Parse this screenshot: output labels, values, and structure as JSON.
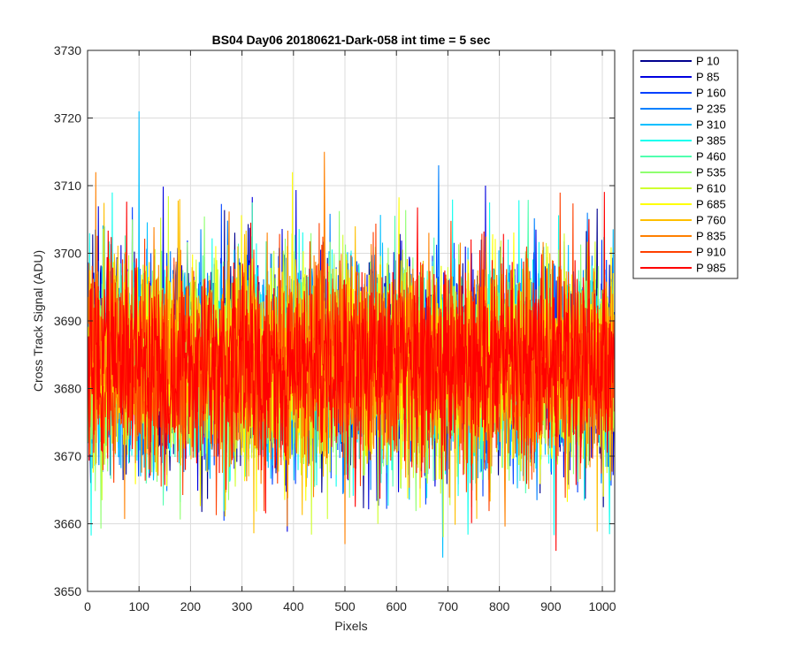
{
  "chart_data": {
    "type": "line",
    "title": "BS04 Day06 20180621-Dark-058 int time = 5 sec",
    "xlabel": "Pixels",
    "ylabel": "Cross Track Signal (ADU)",
    "xlim": [
      0,
      1024
    ],
    "ylim": [
      3650,
      3730
    ],
    "xticks": [
      0,
      100,
      200,
      300,
      400,
      500,
      600,
      700,
      800,
      900,
      1000
    ],
    "yticks": [
      3650,
      3660,
      3670,
      3680,
      3690,
      3700,
      3710,
      3720,
      3730
    ],
    "xtick_labels": [
      "0",
      "100",
      "200",
      "300",
      "400",
      "500",
      "600",
      "700",
      "800",
      "900",
      "1000"
    ],
    "ytick_labels": [
      "3650",
      "3660",
      "3670",
      "3680",
      "3690",
      "3700",
      "3710",
      "3720",
      "3730"
    ],
    "grid": true,
    "legend_position": "outside-right",
    "noise_profile": {
      "n_points": 1024,
      "mean": 3683.5,
      "std": 7.5,
      "typical_range": [
        3658,
        3711
      ],
      "outliers": [
        {
          "series": "P 310",
          "x": 100,
          "y": 3721
        },
        {
          "series": "P 310",
          "x": 690,
          "y": 3655
        },
        {
          "series": "P 235",
          "x": 682,
          "y": 3713
        },
        {
          "series": "P 835",
          "x": 460,
          "y": 3715
        },
        {
          "series": "P 835",
          "x": 500,
          "y": 3657
        },
        {
          "series": "P 985",
          "x": 910,
          "y": 3656
        },
        {
          "series": "P 835",
          "x": 16,
          "y": 3712
        },
        {
          "series": "P 685",
          "x": 398,
          "y": 3712
        },
        {
          "series": "P 85",
          "x": 773,
          "y": 3710
        }
      ]
    },
    "series": [
      {
        "name": "P 10",
        "color": "#00008f"
      },
      {
        "name": "P 85",
        "color": "#0000e0"
      },
      {
        "name": "P 160",
        "color": "#0040ff"
      },
      {
        "name": "P 235",
        "color": "#0080ff"
      },
      {
        "name": "P 310",
        "color": "#00bfff"
      },
      {
        "name": "P 385",
        "color": "#10ffef"
      },
      {
        "name": "P 460",
        "color": "#50ffaf"
      },
      {
        "name": "P 535",
        "color": "#8fff70"
      },
      {
        "name": "P 610",
        "color": "#cfff30"
      },
      {
        "name": "P 685",
        "color": "#ffff00"
      },
      {
        "name": "P 760",
        "color": "#ffbf00"
      },
      {
        "name": "P 835",
        "color": "#ff8000"
      },
      {
        "name": "P 910",
        "color": "#ff4000"
      },
      {
        "name": "P 985",
        "color": "#ff0000"
      }
    ]
  }
}
